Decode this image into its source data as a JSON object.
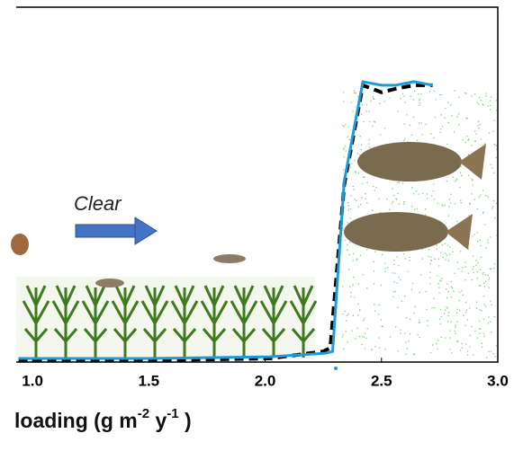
{
  "chart_data": {
    "type": "line",
    "annotation": "Clear",
    "x_label_parts": [
      "loading (g m",
      "-2",
      " y",
      "-1",
      " )"
    ],
    "xlim": [
      0.93,
      3.0
    ],
    "xticks": [
      {
        "value": 1.0,
        "label": "1.0"
      },
      1.5,
      {
        "value": 2.0,
        "label": "2.0"
      },
      2.5,
      {
        "value": 3.0,
        "label": "3.0"
      }
    ],
    "ylim": [
      0,
      1
    ],
    "series": [
      {
        "color": "#000000",
        "dashed": true,
        "x": [
          0.94,
          1.5,
          2.02,
          2.25,
          2.28,
          2.34,
          2.42,
          2.5,
          2.56,
          2.64,
          2.72
        ],
        "values": [
          0.005,
          0.005,
          0.01,
          0.03,
          0.04,
          0.5,
          0.78,
          0.76,
          0.77,
          0.78,
          0.78
        ]
      },
      {
        "color": "#1e9ad6",
        "dashed": false,
        "x": [
          0.94,
          1.5,
          2.02,
          2.26,
          2.29,
          2.34,
          2.42,
          2.5,
          2.56,
          2.64,
          2.72
        ],
        "values": [
          0.01,
          0.01,
          0.015,
          0.025,
          0.03,
          0.51,
          0.79,
          0.78,
          0.78,
          0.79,
          0.78
        ]
      }
    ]
  }
}
